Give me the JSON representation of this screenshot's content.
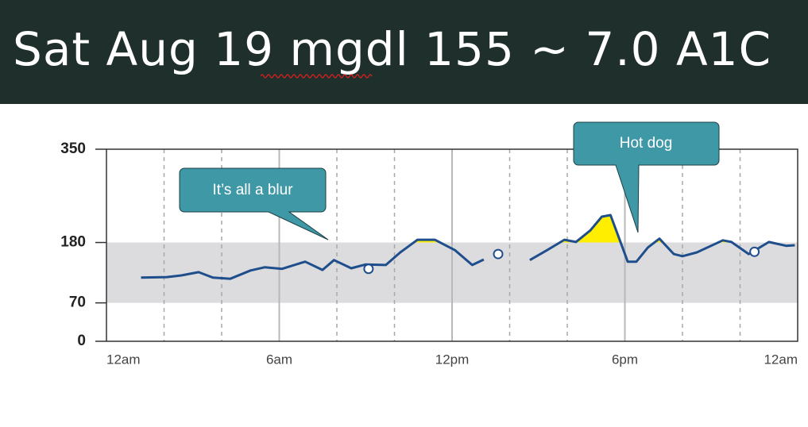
{
  "header": {
    "title": "Sat Aug 19 mgdl 155 ~ 7.0 A1C"
  },
  "chart_data": {
    "type": "line",
    "x": [
      1.2,
      2.1,
      2.6,
      3.2,
      3.7,
      4.3,
      5.0,
      5.5,
      6.1,
      6.9,
      7.5,
      7.9,
      8.5,
      9.0,
      9.7,
      10.2,
      10.8,
      11.4,
      12.1,
      12.7,
      13.1,
      13.9,
      14.7,
      15.3,
      15.9,
      16.3,
      16.8,
      17.2,
      17.5,
      17.7,
      18.1,
      18.4,
      18.8,
      19.2,
      19.7,
      20.0,
      20.5,
      21.4,
      21.7,
      22.3,
      23.0,
      23.6,
      23.9
    ],
    "values": [
      116,
      117,
      120,
      126,
      116,
      114,
      129,
      135,
      132,
      145,
      130,
      148,
      133,
      140,
      139,
      162,
      185,
      185,
      166,
      139,
      149,
      null,
      148,
      166,
      185,
      181,
      202,
      227,
      230,
      202,
      145,
      145,
      171,
      187,
      159,
      155,
      162,
      184,
      181,
      159,
      181,
      174,
      175
    ],
    "color": "#1f4e8c",
    "points": {
      "x": [
        9.1,
        13.6,
        22.5
      ],
      "values": [
        132,
        159,
        163
      ]
    },
    "target_range": [
      70,
      180
    ],
    "target_color": "#dcdcdf",
    "high_color": "#ffee00",
    "xlim": [
      0,
      24
    ],
    "xticks": [
      {
        "value": 0,
        "label": "12am"
      },
      {
        "value": 6,
        "label": "6am"
      },
      {
        "value": 12,
        "label": "12pm"
      },
      {
        "value": 18,
        "label": "6pm"
      },
      {
        "value": 24,
        "label": "12am"
      }
    ],
    "minor_xticks": [
      2,
      4,
      8,
      10,
      14,
      16,
      20,
      22
    ],
    "ylim": [
      0,
      350
    ],
    "yticks": [
      0,
      70,
      180,
      350
    ],
    "annotations": [
      {
        "text": "It’s all a blur"
      },
      {
        "text": "Hot dog"
      }
    ]
  }
}
